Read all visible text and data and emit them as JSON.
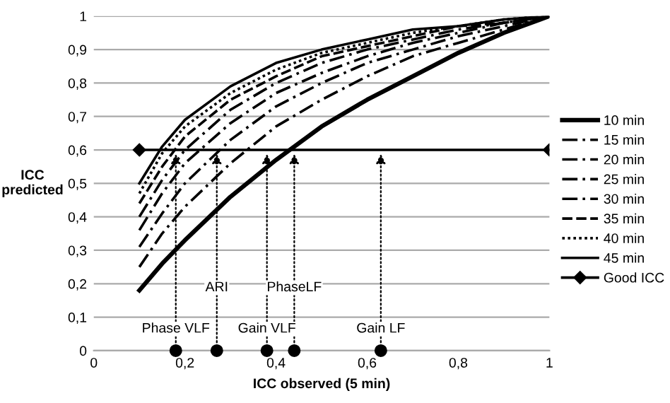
{
  "chart_data": {
    "type": "line",
    "xlabel": "ICC observed (5 min)",
    "ylabel": "ICC\npredicted",
    "x": [
      0.1,
      0.15,
      0.2,
      0.3,
      0.4,
      0.5,
      0.6,
      0.7,
      0.8,
      0.9,
      1
    ],
    "series": [
      {
        "name": "10 min",
        "color": "#000000",
        "line_style": "solid",
        "values": [
          0.18,
          0.26,
          0.33,
          0.46,
          0.57,
          0.67,
          0.75,
          0.82,
          0.89,
          0.95,
          1
        ]
      },
      {
        "name": "15 min",
        "color": "#000000",
        "line_style": "dashdot",
        "values": [
          0.25,
          0.35,
          0.43,
          0.56,
          0.67,
          0.75,
          0.82,
          0.88,
          0.92,
          0.96,
          1
        ]
      },
      {
        "name": "20 min",
        "color": "#000000",
        "line_style": "dashdot",
        "values": [
          0.31,
          0.41,
          0.5,
          0.63,
          0.73,
          0.8,
          0.86,
          0.9,
          0.94,
          0.97,
          1
        ]
      },
      {
        "name": "25 min",
        "color": "#000000",
        "line_style": "dashdot",
        "values": [
          0.36,
          0.47,
          0.56,
          0.68,
          0.77,
          0.83,
          0.88,
          0.92,
          0.95,
          0.98,
          1
        ]
      },
      {
        "name": "30 min",
        "color": "#000000",
        "line_style": "dashdot",
        "values": [
          0.4,
          0.51,
          0.6,
          0.72,
          0.8,
          0.86,
          0.9,
          0.93,
          0.96,
          0.98,
          1
        ]
      },
      {
        "name": "35 min",
        "color": "#000000",
        "line_style": "dashed",
        "values": [
          0.44,
          0.55,
          0.64,
          0.75,
          0.82,
          0.88,
          0.91,
          0.94,
          0.97,
          0.98,
          1
        ]
      },
      {
        "name": "40 min",
        "color": "#000000",
        "line_style": "dotted",
        "values": [
          0.47,
          0.59,
          0.67,
          0.77,
          0.84,
          0.89,
          0.92,
          0.95,
          0.97,
          0.99,
          1
        ]
      },
      {
        "name": "45 min",
        "color": "#000000",
        "line_style": "solid",
        "values": [
          0.5,
          0.61,
          0.69,
          0.79,
          0.86,
          0.9,
          0.93,
          0.96,
          0.97,
          0.99,
          1
        ]
      },
      {
        "name": "Good ICC",
        "color": "#000000",
        "line_style": "solid",
        "marker": "diamond",
        "x": [
          0.1,
          1
        ],
        "values": [
          0.6,
          0.6
        ]
      },
      {
        "type": "scatter",
        "color": "#000000",
        "marker": "circle",
        "x": [
          0.18,
          0.27,
          0.38,
          0.44,
          0.63
        ],
        "values": [
          0,
          0,
          0,
          0,
          0
        ]
      }
    ],
    "annotations": [
      "Phase VLF",
      "ARI",
      "Gain VLF",
      "PhaseLF",
      "Gain LF"
    ],
    "xlim": [
      0,
      1
    ],
    "ylim": [
      0,
      1
    ],
    "xticks": [
      0,
      {
        "value": 0.2,
        "label": "0,2"
      },
      {
        "value": 0.4,
        "label": "0,4"
      },
      {
        "value": 0.6,
        "label": "0,6"
      },
      {
        "value": 0.8,
        "label": "0,8"
      },
      1
    ],
    "yticks": [
      0,
      {
        "value": 0.1,
        "label": "0,1"
      },
      {
        "value": 0.2,
        "label": "0,2"
      },
      {
        "value": 0.3,
        "label": "0,3"
      },
      {
        "value": 0.4,
        "label": "0,4"
      },
      {
        "value": 0.5,
        "label": "0,5"
      },
      {
        "value": 0.6,
        "label": "0,6"
      },
      {
        "value": 0.7,
        "label": "0,7"
      },
      {
        "value": 0.8,
        "label": "0,8"
      },
      {
        "value": 0.9,
        "label": "0,9"
      },
      1
    ],
    "grid": "y",
    "legend": "right"
  }
}
